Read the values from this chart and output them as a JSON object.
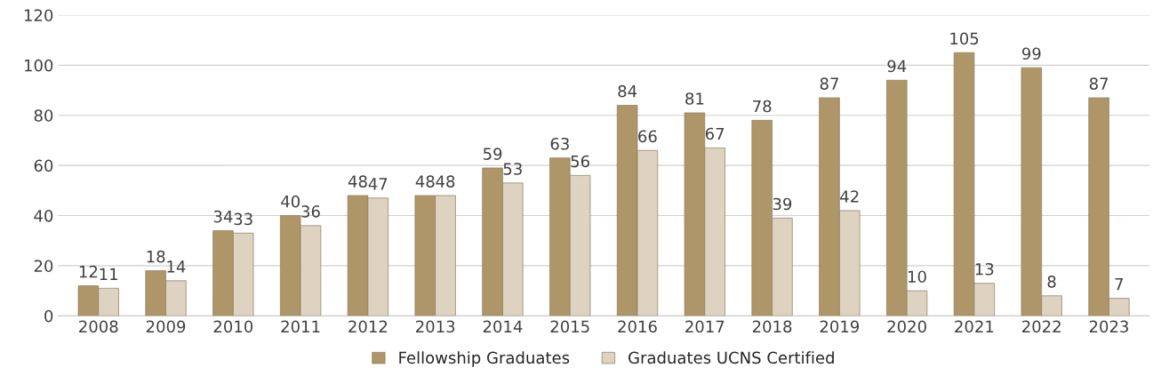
{
  "chart_data": {
    "type": "bar",
    "categories": [
      "2008",
      "2009",
      "2010",
      "2011",
      "2012",
      "2013",
      "2014",
      "2015",
      "2016",
      "2017",
      "2018",
      "2019",
      "2020",
      "2021",
      "2022",
      "2023"
    ],
    "series": [
      {
        "name": "Fellowship Graduates",
        "color": "#ae9669",
        "values": [
          12,
          18,
          34,
          40,
          48,
          48,
          59,
          63,
          84,
          81,
          78,
          87,
          94,
          105,
          99,
          87
        ]
      },
      {
        "name": "Graduates UCNS Certified",
        "color": "#ddd3c0",
        "values": [
          11,
          14,
          33,
          36,
          47,
          48,
          53,
          56,
          66,
          67,
          39,
          42,
          10,
          13,
          8,
          7
        ]
      }
    ],
    "ylim": [
      0,
      120
    ],
    "yticks": [
      0,
      20,
      40,
      60,
      80,
      100,
      120
    ],
    "grid": "y",
    "legend": "bottom",
    "data_labels": true
  }
}
